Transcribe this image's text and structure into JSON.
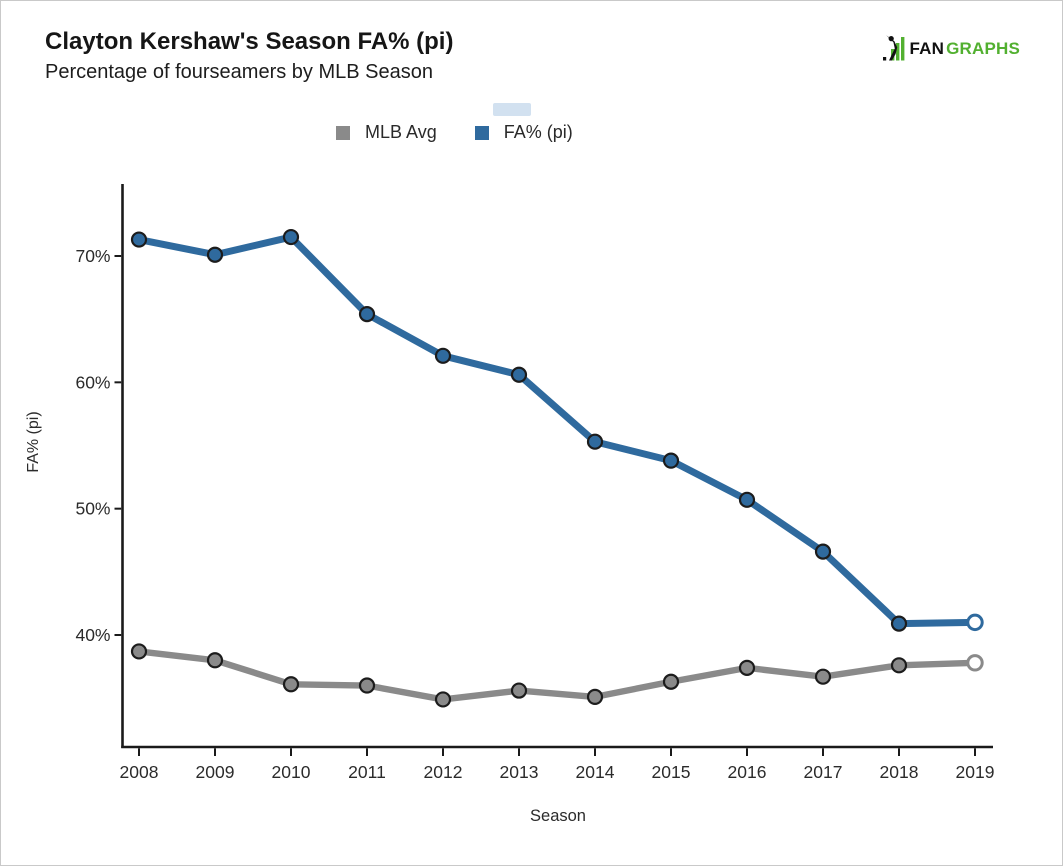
{
  "page": {
    "background": "#ffffff",
    "border_color": "#c9c9c9"
  },
  "header": {
    "title": "Clayton Kershaw's Season FA% (pi)",
    "subtitle": "Percentage of fourseamers by MLB Season"
  },
  "logo": {
    "text_fan": "FAN",
    "text_graphs": "GRAPHS",
    "green": "#52b030",
    "dark": "#111111",
    "icon": "fangraphs-batter-bars-icon"
  },
  "legend": {
    "position": "top",
    "items": [
      {
        "label": "MLB Avg",
        "color": "#8a8a8a"
      },
      {
        "label": "FA% (pi)",
        "color": "#2f6a9e"
      }
    ]
  },
  "chart_data": {
    "type": "line",
    "title": "Clayton Kershaw's Season FA% (pi)",
    "subtitle": "Percentage of fourseamers by MLB Season",
    "xlabel": "Season",
    "ylabel": "FA% (pi)",
    "categories": [
      "2008",
      "2009",
      "2010",
      "2011",
      "2012",
      "2013",
      "2014",
      "2015",
      "2016",
      "2017",
      "2018",
      "2019"
    ],
    "series": [
      {
        "name": "MLB Avg",
        "color": "#8a8a8a",
        "values": [
          38.7,
          38.0,
          36.1,
          36.0,
          34.9,
          35.6,
          35.1,
          36.3,
          37.4,
          36.7,
          37.6,
          37.8
        ],
        "marker": "filled-circle-dark-edge",
        "final_marker": "open-circle"
      },
      {
        "name": "FA% (pi)",
        "color": "#2f6a9e",
        "values": [
          71.3,
          70.1,
          71.5,
          65.4,
          62.1,
          60.6,
          55.3,
          53.8,
          50.7,
          46.6,
          40.9,
          41.0
        ],
        "marker": "filled-circle-dark-edge",
        "final_marker": "open-circle"
      }
    ],
    "yticks": [
      {
        "value": 40,
        "label": "40%"
      },
      {
        "value": 50,
        "label": "50%"
      },
      {
        "value": 60,
        "label": "60%"
      },
      {
        "value": 70,
        "label": "70%"
      }
    ],
    "ylim": [
      31.1,
      75.7
    ],
    "grid": false,
    "legend_position": "top",
    "axis_color": "#1a1a1a",
    "tick_label_color": "#2b2b2b"
  }
}
